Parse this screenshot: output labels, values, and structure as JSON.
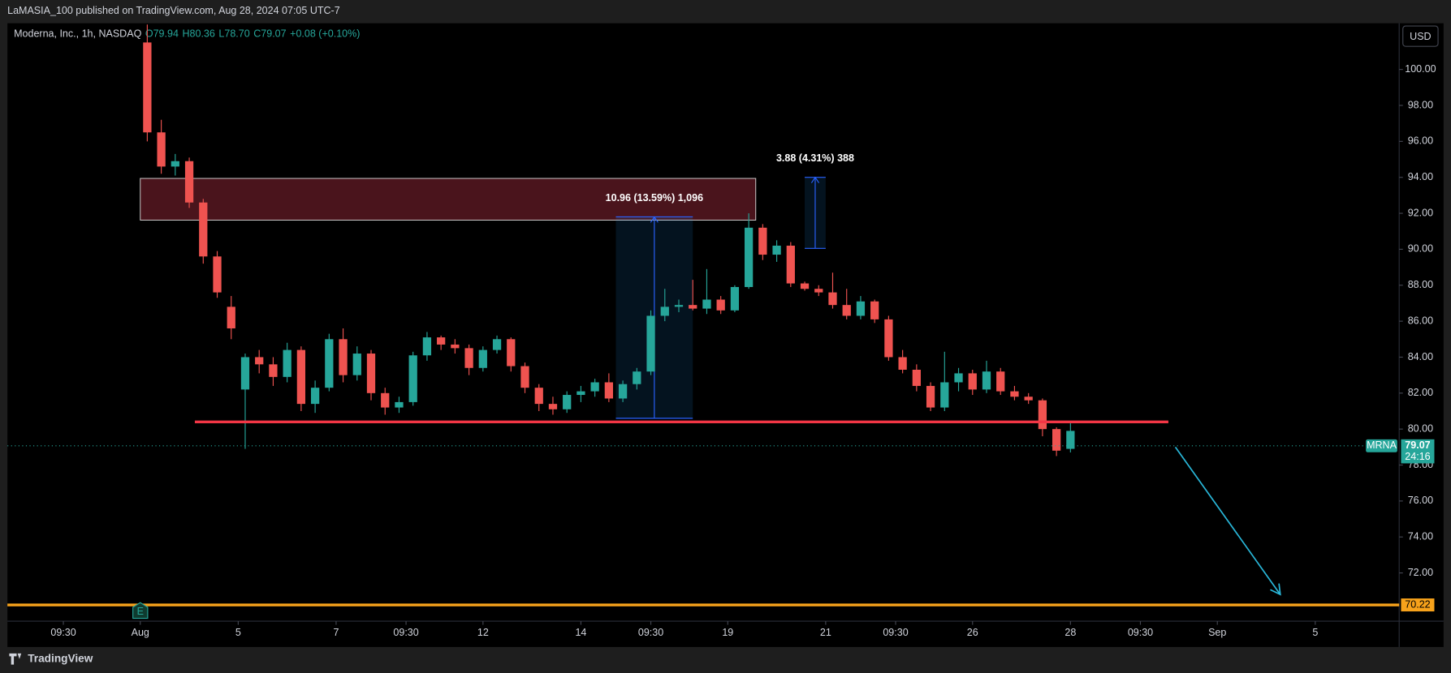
{
  "header": {
    "publisher": "LaMASIA_100 published on TradingView.com, Aug 28, 2024 07:05 UTC-7",
    "brand": "TradingView"
  },
  "chart_data": {
    "type": "candlestick",
    "symbol": "Moderna, Inc., 1h, NASDAQ",
    "ohlc_legend": [
      "O79.94",
      "H80.36",
      "L78.70",
      "C79.07",
      "+0.08 (+0.10%)"
    ],
    "currency": "USD",
    "up_color": "#26a69a",
    "down_color": "#ef5350",
    "x": [
      1,
      3,
      5,
      7,
      9,
      11,
      13,
      15,
      17,
      19,
      21,
      23,
      25,
      27,
      29,
      31,
      33,
      35,
      37,
      39,
      41,
      43,
      45,
      47,
      49,
      51,
      53,
      55,
      57,
      59,
      61,
      63,
      65,
      67,
      69,
      71,
      73,
      75,
      77,
      79,
      81,
      83,
      85,
      87,
      89,
      91,
      93,
      95,
      97,
      99,
      101,
      103,
      105,
      107,
      109,
      111,
      113,
      115,
      117,
      119,
      121,
      123,
      125,
      127,
      129,
      131,
      133
    ],
    "open": [
      101.5,
      96.5,
      94.6,
      94.9,
      92.6,
      89.6,
      86.8,
      82.2,
      84.0,
      83.6,
      82.9,
      84.4,
      81.4,
      82.3,
      85.0,
      83.0,
      84.2,
      82.0,
      81.2,
      81.5,
      84.1,
      85.1,
      84.7,
      84.5,
      83.4,
      84.4,
      85.0,
      83.5,
      82.3,
      81.4,
      81.1,
      81.9,
      82.1,
      82.6,
      81.7,
      82.5,
      83.2,
      86.3,
      86.8,
      86.9,
      86.7,
      87.2,
      86.6,
      87.9,
      91.2,
      89.7,
      90.2,
      88.1,
      87.8,
      87.6,
      86.9,
      86.3,
      87.1,
      86.1,
      84.0,
      83.3,
      82.4,
      81.2,
      82.6,
      83.1,
      82.2,
      83.2,
      82.1,
      81.8,
      81.6,
      80.0,
      78.9
    ],
    "high": [
      102.5,
      97.2,
      95.3,
      95.1,
      92.8,
      89.9,
      87.4,
      84.2,
      84.4,
      84.0,
      84.8,
      84.6,
      82.7,
      85.3,
      85.6,
      84.6,
      84.4,
      82.3,
      81.8,
      84.3,
      85.4,
      85.2,
      85.0,
      84.7,
      84.6,
      85.2,
      85.1,
      83.7,
      82.5,
      81.8,
      82.1,
      82.4,
      82.8,
      83.1,
      82.7,
      83.4,
      86.6,
      87.8,
      87.2,
      88.3,
      88.9,
      87.4,
      88.0,
      92.0,
      91.4,
      90.5,
      90.4,
      88.2,
      88.0,
      88.7,
      87.8,
      87.4,
      87.2,
      86.3,
      84.4,
      83.6,
      82.6,
      84.3,
      83.4,
      83.3,
      83.8,
      83.4,
      82.4,
      82.0,
      81.7,
      80.1,
      80.4
    ],
    "low": [
      96.0,
      94.2,
      94.1,
      92.3,
      89.2,
      87.3,
      85.0,
      78.9,
      83.1,
      82.4,
      82.6,
      81.0,
      80.9,
      82.1,
      82.6,
      82.7,
      81.6,
      80.8,
      80.9,
      81.3,
      83.8,
      84.4,
      84.2,
      83.0,
      83.2,
      84.2,
      83.2,
      82.0,
      81.0,
      80.8,
      80.9,
      81.5,
      81.8,
      81.5,
      81.5,
      82.2,
      83.0,
      86.0,
      86.5,
      86.6,
      86.4,
      86.4,
      86.5,
      87.8,
      89.4,
      89.3,
      87.9,
      87.7,
      87.4,
      86.7,
      86.1,
      86.1,
      85.9,
      83.8,
      83.1,
      82.1,
      81.0,
      81.0,
      82.1,
      81.9,
      82.0,
      81.9,
      81.6,
      81.4,
      79.6,
      78.5,
      78.7
    ],
    "close": [
      96.5,
      94.6,
      94.9,
      92.6,
      89.6,
      87.6,
      85.6,
      84.0,
      83.6,
      82.9,
      84.4,
      81.4,
      82.3,
      85.0,
      83.0,
      84.2,
      82.0,
      81.2,
      81.5,
      84.1,
      85.1,
      84.7,
      84.5,
      83.4,
      84.4,
      85.0,
      83.5,
      82.3,
      81.4,
      81.1,
      81.9,
      82.1,
      82.6,
      81.7,
      82.5,
      83.2,
      86.3,
      86.8,
      86.9,
      86.7,
      87.2,
      86.6,
      87.9,
      91.2,
      89.7,
      90.2,
      88.1,
      87.8,
      87.6,
      86.9,
      86.3,
      87.1,
      86.1,
      84.0,
      83.3,
      82.4,
      81.2,
      82.6,
      83.1,
      82.2,
      83.2,
      82.1,
      81.8,
      81.6,
      80.0,
      78.8,
      79.9
    ],
    "xlim": [
      -19,
      180
    ],
    "ylim": [
      69.32,
      102.57
    ],
    "xticks": [
      {
        "value": -11,
        "label": "09:30"
      },
      {
        "value": 0,
        "label": "Aug"
      },
      {
        "value": 14,
        "label": "5"
      },
      {
        "value": 28,
        "label": "7"
      },
      {
        "value": 38,
        "label": "09:30"
      },
      {
        "value": 49,
        "label": "12"
      },
      {
        "value": 63,
        "label": "14"
      },
      {
        "value": 73,
        "label": "09:30"
      },
      {
        "value": 84,
        "label": "19"
      },
      {
        "value": 98,
        "label": "21"
      },
      {
        "value": 108,
        "label": "09:30"
      },
      {
        "value": 119,
        "label": "26"
      },
      {
        "value": 133,
        "label": "28"
      },
      {
        "value": 143,
        "label": "09:30"
      },
      {
        "value": 154,
        "label": "Sep"
      },
      {
        "value": 168,
        "label": "5"
      }
    ],
    "yticks": [
      {
        "value": 72,
        "label": "72.00"
      },
      {
        "value": 74,
        "label": "74.00"
      },
      {
        "value": 76,
        "label": "76.00"
      },
      {
        "value": 78,
        "label": "78.00"
      },
      {
        "value": 80,
        "label": "80.00"
      },
      {
        "value": 82,
        "label": "82.00"
      },
      {
        "value": 84,
        "label": "84.00"
      },
      {
        "value": 86,
        "label": "86.00"
      },
      {
        "value": 88,
        "label": "88.00"
      },
      {
        "value": 90,
        "label": "90.00"
      },
      {
        "value": 92,
        "label": "92.00"
      },
      {
        "value": 94,
        "label": "94.00"
      },
      {
        "value": 96,
        "label": "96.00"
      },
      {
        "value": 98,
        "label": "98.00"
      },
      {
        "value": 100,
        "label": "100.00"
      }
    ],
    "last_price": {
      "ticker": "MRNA",
      "value": 79.07,
      "countdown": "24:16"
    },
    "support_level": {
      "value": 70.22,
      "color": "#f7a21b"
    },
    "zone": {
      "xlim": [
        0,
        88
      ],
      "ylim": [
        91.62,
        93.94
      ],
      "color": "#4a141c"
    },
    "neckline": {
      "xlim": [
        7.8,
        147
      ],
      "value": 80.4,
      "color": "#f23645"
    },
    "measures": [
      {
        "label": "10.96 (13.59%) 1,096",
        "xlim": [
          68,
          79
        ],
        "ylim": [
          80.6,
          91.8
        ]
      },
      {
        "label": "3.88 (4.31%) 388",
        "xlim": [
          95,
          98
        ],
        "ylim": [
          90.05,
          94.0
        ]
      }
    ],
    "projection": {
      "x": [
        148,
        163
      ],
      "y": [
        79.0,
        70.8
      ],
      "color": "#29b6d8"
    },
    "earnings_marker": {
      "label": "E",
      "x": 0
    }
  }
}
